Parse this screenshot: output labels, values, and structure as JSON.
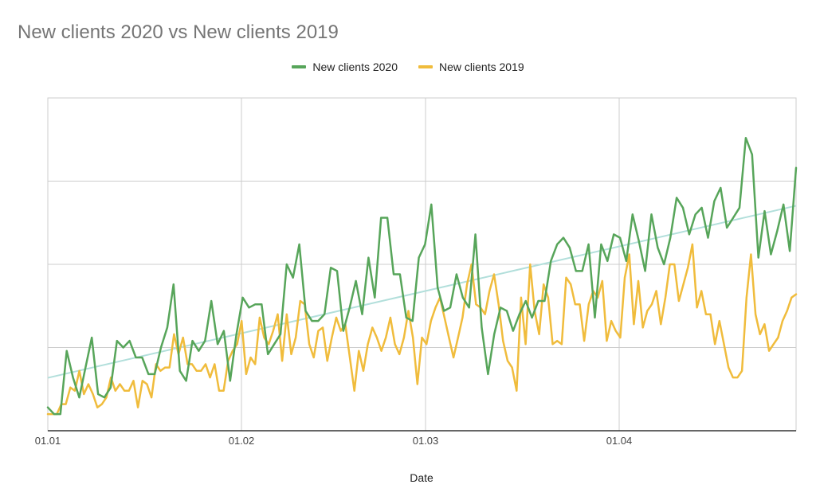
{
  "chart_data": {
    "type": "line",
    "title": "New clients 2020 vs New clients 2019",
    "xlabel": "Date",
    "ylabel": "",
    "x_ticks": [
      "01.01",
      "01.02",
      "01.03",
      "01.04"
    ],
    "y_gridlines": 4,
    "y_tick_labels_visible": false,
    "ylim": [
      0,
      100
    ],
    "grid": true,
    "legend": "top-center",
    "series": [
      {
        "name": "New clients 2020",
        "color": "#57a55a",
        "values": [
          7,
          5,
          5,
          24,
          16,
          10,
          19,
          28,
          11,
          10,
          13,
          27,
          25,
          27,
          22,
          22,
          17,
          17,
          25,
          31,
          44,
          18,
          15,
          27,
          24,
          27,
          39,
          26,
          30,
          15,
          29,
          40,
          37,
          38,
          38,
          23,
          26,
          29,
          50,
          46,
          56,
          36,
          33,
          33,
          35,
          49,
          48,
          30,
          37,
          45,
          35,
          52,
          40,
          64,
          64,
          47,
          47,
          34,
          33,
          52,
          56,
          68,
          43,
          36,
          37,
          47,
          40,
          37,
          59,
          31,
          17,
          29,
          37,
          36,
          30,
          35,
          39,
          34,
          39,
          39,
          51,
          56,
          58,
          55,
          48,
          48,
          56,
          34,
          56,
          51,
          59,
          58,
          51,
          65,
          57,
          48,
          65,
          55,
          50,
          58,
          70,
          67,
          59,
          65,
          67,
          58,
          69,
          73,
          61,
          64,
          67,
          88,
          83,
          52,
          66,
          53,
          60,
          68,
          54,
          79
        ],
        "trend_2020": {
          "color": "#b2dfdb",
          "start": 15.9,
          "end": 67.6
        }
      },
      {
        "name": "New clients 2019",
        "color": "#f0bc3c",
        "values": [
          5,
          5,
          5,
          8,
          8,
          13,
          12,
          18,
          11,
          14,
          11,
          7,
          8,
          10,
          16,
          12,
          14,
          12,
          12,
          15,
          7,
          15,
          14,
          10,
          20,
          18,
          19,
          19,
          29,
          23,
          28,
          20,
          20,
          18,
          18,
          20,
          16,
          20,
          12,
          12,
          21,
          24,
          26,
          33,
          17,
          22,
          20,
          34,
          28,
          26,
          30,
          35,
          21,
          35,
          23,
          28,
          39,
          38,
          26,
          22,
          30,
          31,
          21,
          28,
          34,
          30,
          32,
          22,
          12,
          24,
          18,
          26,
          31,
          28,
          24,
          28,
          34,
          26,
          23,
          28,
          36,
          28,
          14,
          28,
          26,
          33,
          37,
          40,
          34,
          28,
          22,
          28,
          34,
          44,
          50,
          38,
          37,
          35,
          42,
          47,
          38,
          27,
          21,
          19,
          12,
          40,
          26,
          50,
          36,
          29,
          44,
          40,
          26,
          27,
          26,
          46,
          44,
          38,
          38,
          27,
          38,
          42,
          40,
          45,
          27,
          33,
          30,
          28,
          46,
          53,
          32,
          45,
          31,
          36,
          38,
          42,
          32,
          40,
          50,
          50,
          39,
          44,
          49,
          56,
          37,
          42,
          35,
          35,
          26,
          33,
          26,
          19,
          16,
          16,
          18,
          40,
          53,
          35,
          29,
          32,
          24,
          26,
          28,
          33,
          36,
          40,
          41
        ]
      }
    ]
  }
}
